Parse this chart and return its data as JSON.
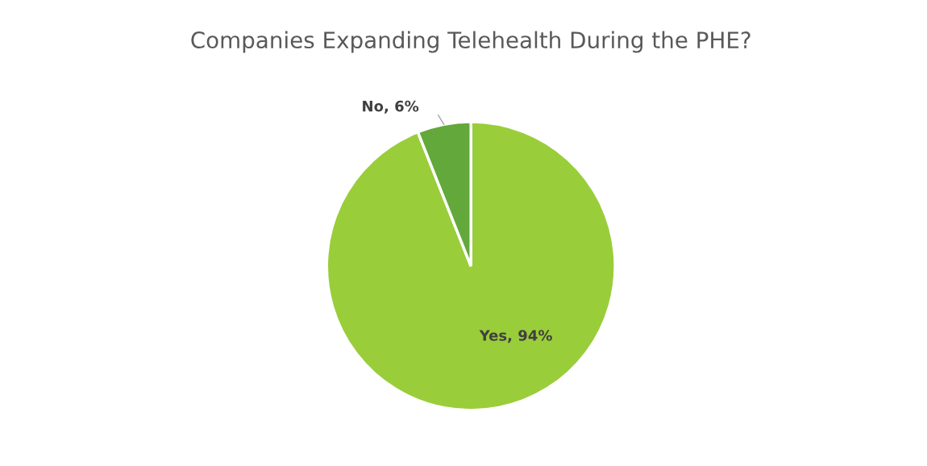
{
  "chart_data": {
    "type": "pie",
    "title": "Companies Expanding Telehealth During the PHE?",
    "categories": [
      "Yes",
      "No"
    ],
    "values": [
      94,
      6
    ],
    "colors": [
      "#9acd3a",
      "#62a83a"
    ],
    "value_labels": [
      "94%",
      "6%"
    ],
    "legend": false
  }
}
